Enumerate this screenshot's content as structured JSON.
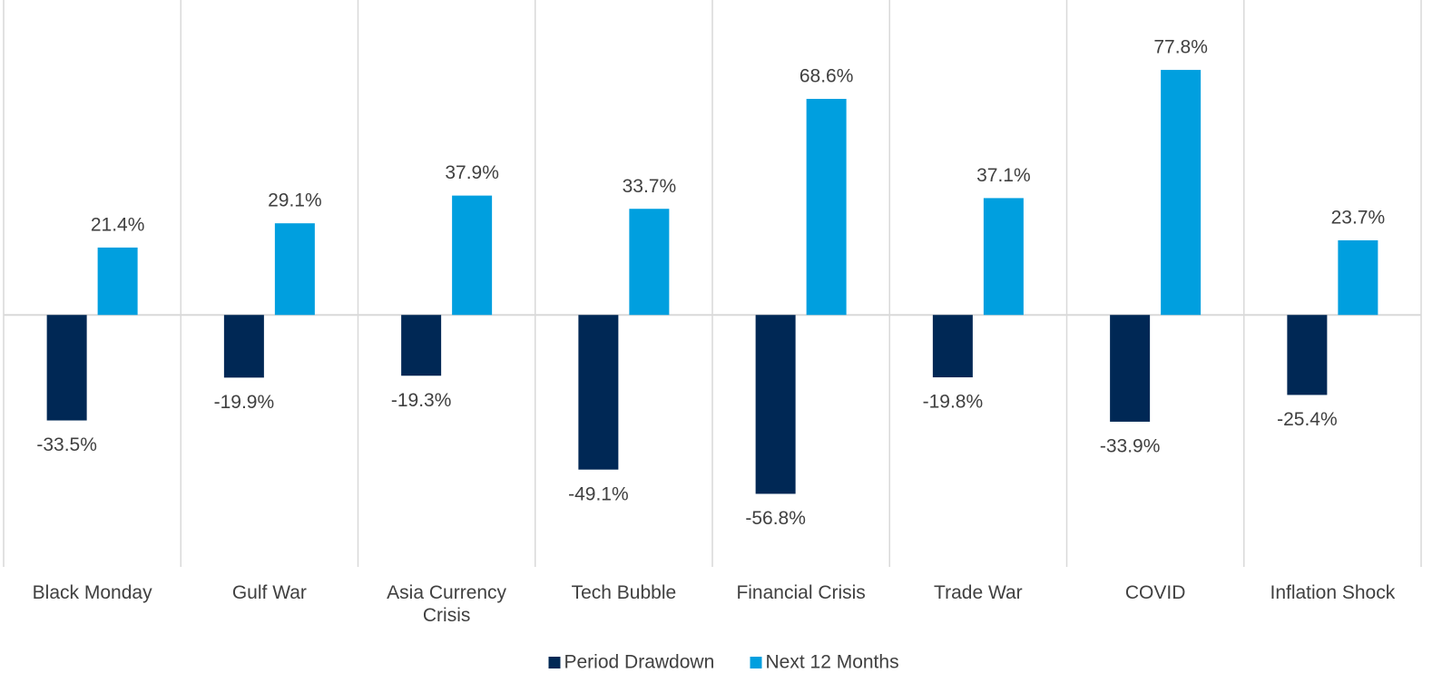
{
  "chart_data": {
    "type": "bar",
    "categories": [
      "Black Monday",
      "Gulf War",
      "Asia Currency Crisis",
      "Tech Bubble",
      "Financial Crisis",
      "Trade War",
      "COVID",
      "Inflation Shock"
    ],
    "series": [
      {
        "name": "Period Drawdown",
        "color": "#002855",
        "values": [
          -33.5,
          -19.9,
          -19.3,
          -49.1,
          -56.8,
          -19.8,
          -33.9,
          -25.4
        ],
        "value_labels": [
          "-33.5%",
          "-19.9%",
          "-19.3%",
          "-49.1%",
          "-56.8%",
          "-19.8%",
          "-33.9%",
          "-25.4%"
        ]
      },
      {
        "name": "Next 12 Months",
        "color": "#009fdf",
        "values": [
          21.4,
          29.1,
          37.9,
          33.7,
          68.6,
          37.1,
          77.8,
          23.7
        ],
        "value_labels": [
          "21.4%",
          "29.1%",
          "37.9%",
          "33.7%",
          "68.6%",
          "37.1%",
          "77.8%",
          "23.7%"
        ]
      }
    ],
    "ylim": [
      -80,
      100
    ],
    "legend": "bottom"
  }
}
